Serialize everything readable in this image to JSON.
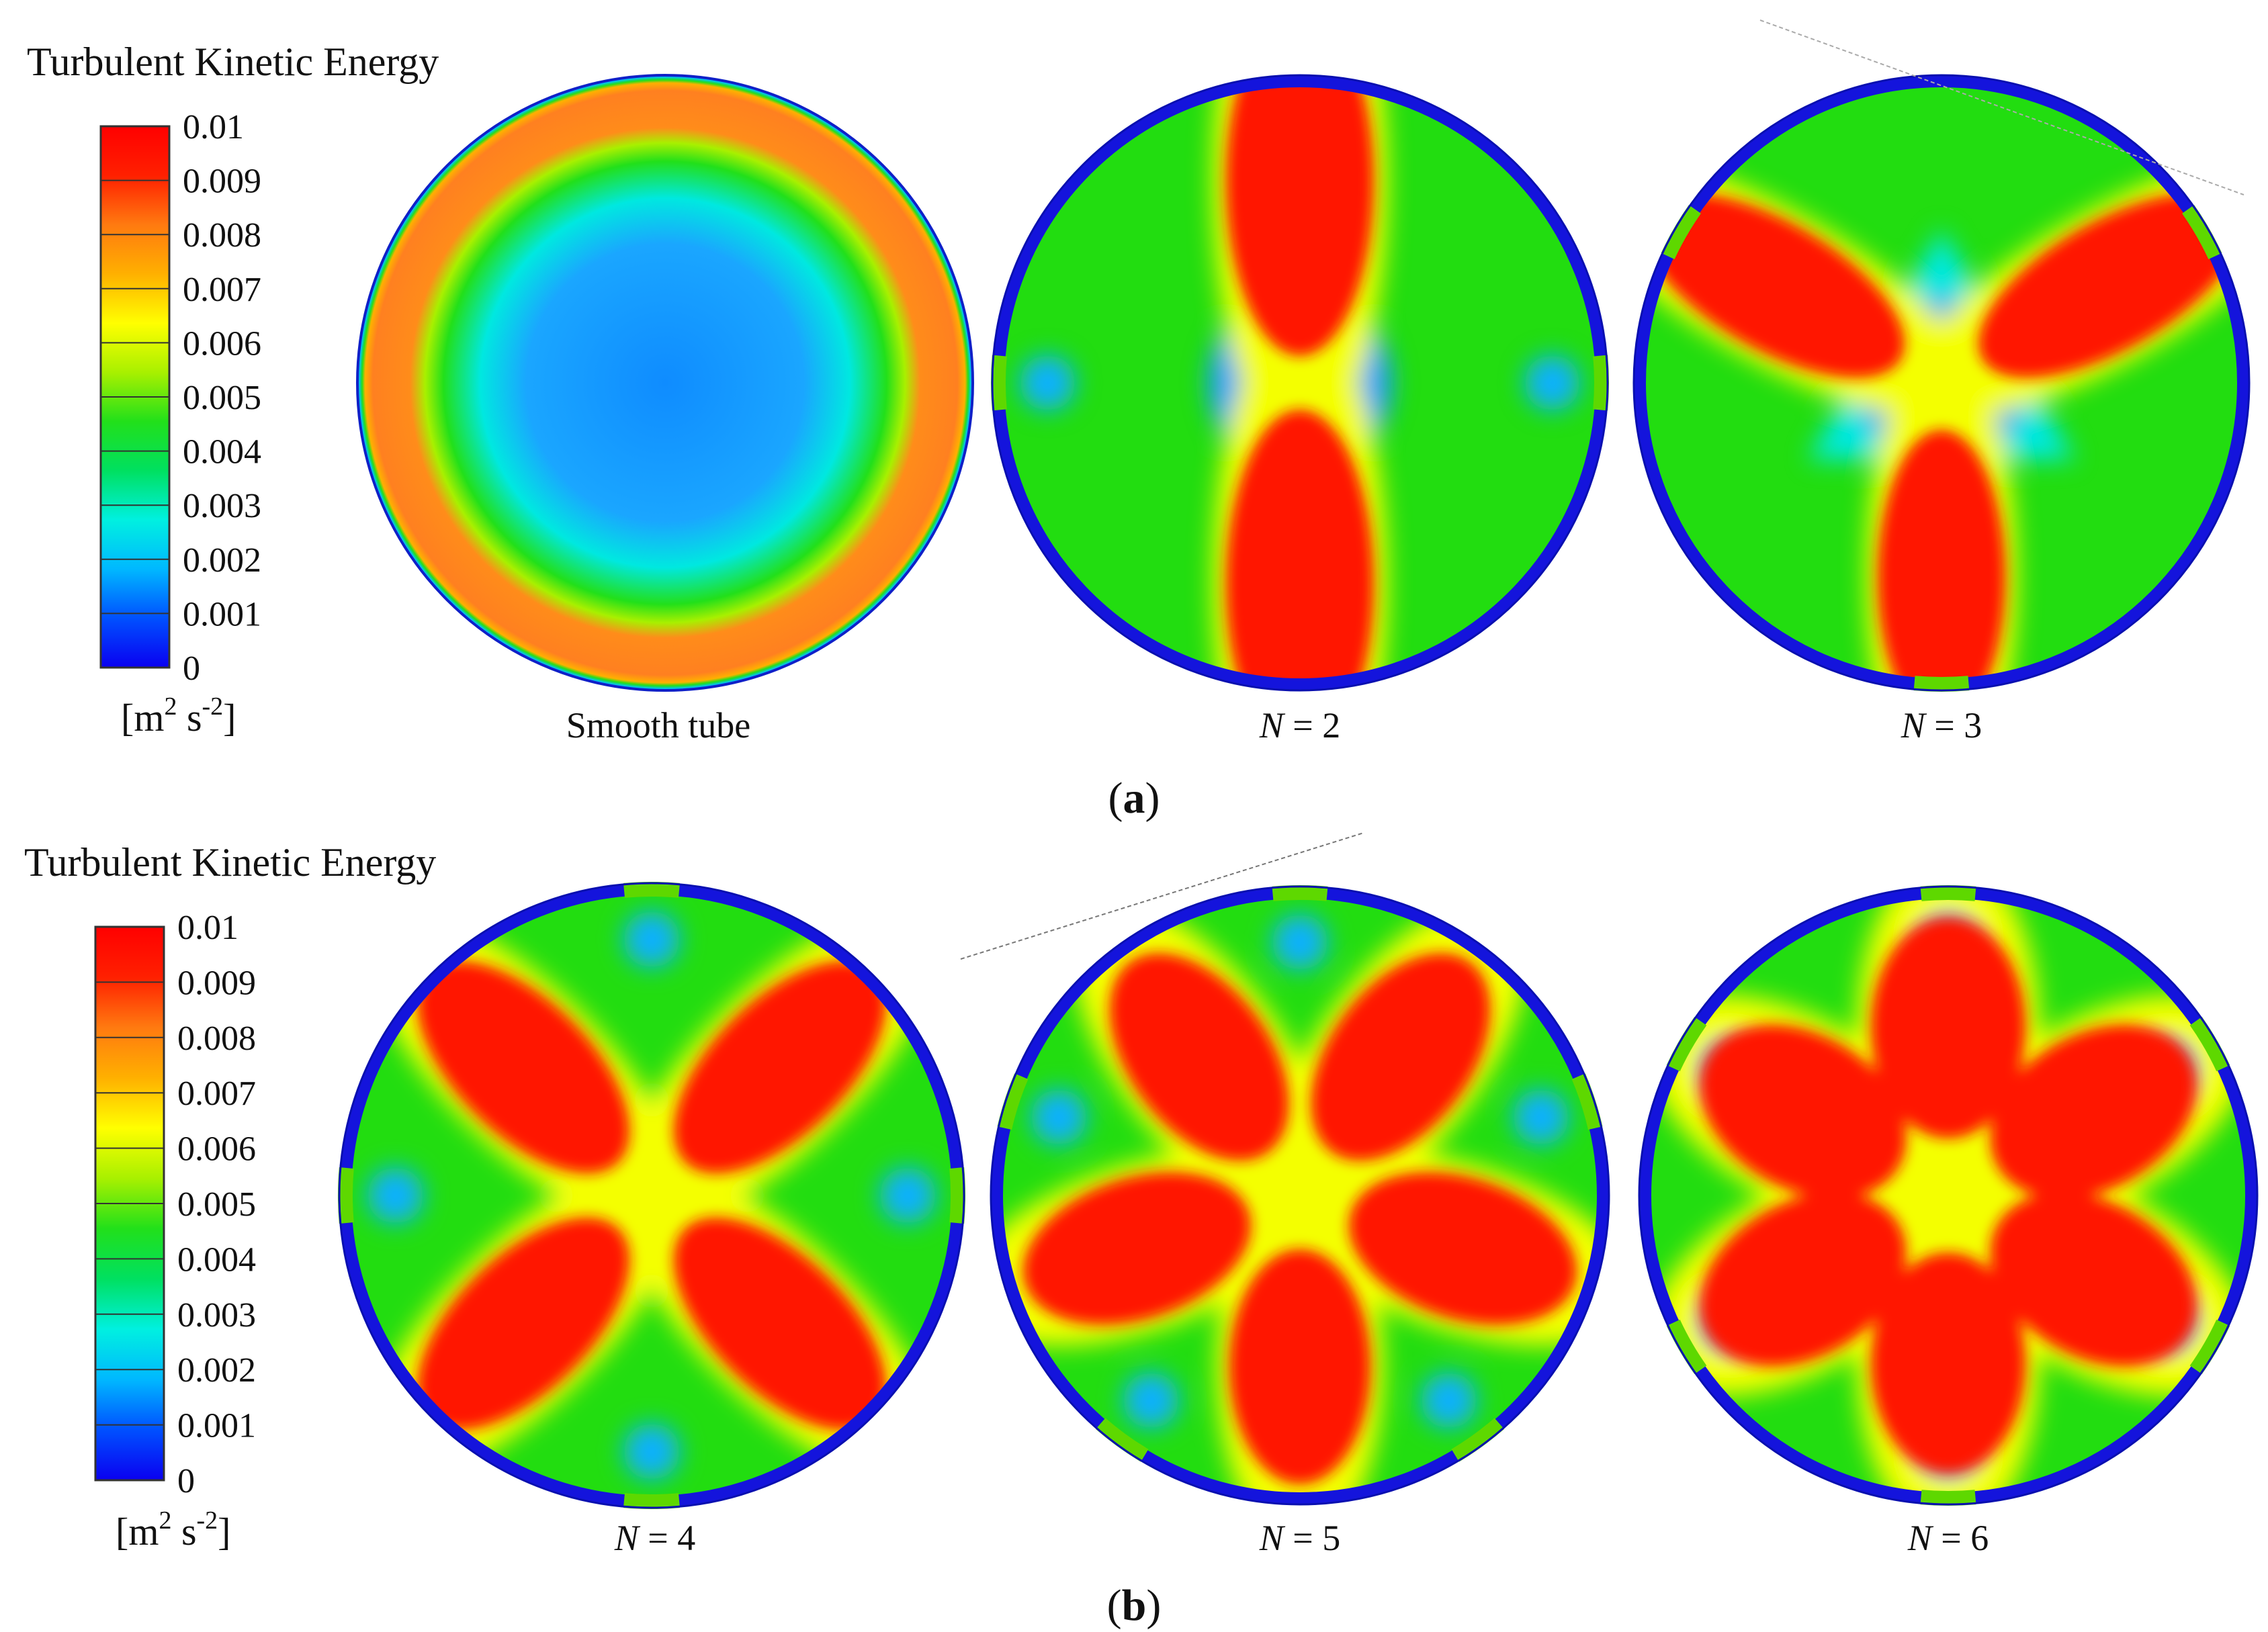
{
  "colormap_stops": [
    "#0a00f0",
    "#0050ff",
    "#00b8ff",
    "#00f0e0",
    "#00e060",
    "#22e01a",
    "#a8f000",
    "#ffff00",
    "#ffb000",
    "#ff7a10",
    "#ff2000",
    "#ff0000"
  ],
  "wall_color": "#1414dc",
  "panels": [
    {
      "id": "a",
      "caption_letter": "a",
      "legend": {
        "title": "Turbulent Kinetic Energy",
        "ticks": [
          "0.01",
          "0.009",
          "0.008",
          "0.007",
          "0.006",
          "0.005",
          "0.004",
          "0.003",
          "0.002",
          "0.001",
          "0"
        ],
        "unit_base": "[m",
        "unit_sup1": "2",
        "unit_mid": " s",
        "unit_sup2": "-2",
        "unit_end": "]"
      },
      "plots": [
        {
          "n": 0,
          "label": "Smooth tube"
        },
        {
          "n": 2,
          "label_var": "N",
          "label_value": " = 2"
        },
        {
          "n": 3,
          "label_var": "N",
          "label_value": " = 3"
        }
      ]
    },
    {
      "id": "b",
      "caption_letter": "b",
      "legend": {
        "title": "Turbulent Kinetic Energy",
        "ticks": [
          "0.01",
          "0.009",
          "0.008",
          "0.007",
          "0.006",
          "0.005",
          "0.004",
          "0.003",
          "0.002",
          "0.001",
          "0"
        ],
        "unit_base": "[m",
        "unit_sup1": "2",
        "unit_mid": " s",
        "unit_sup2": "-2",
        "unit_end": "]"
      },
      "plots": [
        {
          "n": 4,
          "label_var": "N",
          "label_value": " = 4"
        },
        {
          "n": 5,
          "label_var": "N",
          "label_value": " = 5"
        },
        {
          "n": 6,
          "label_var": "N",
          "label_value": " = 6"
        }
      ]
    }
  ]
}
